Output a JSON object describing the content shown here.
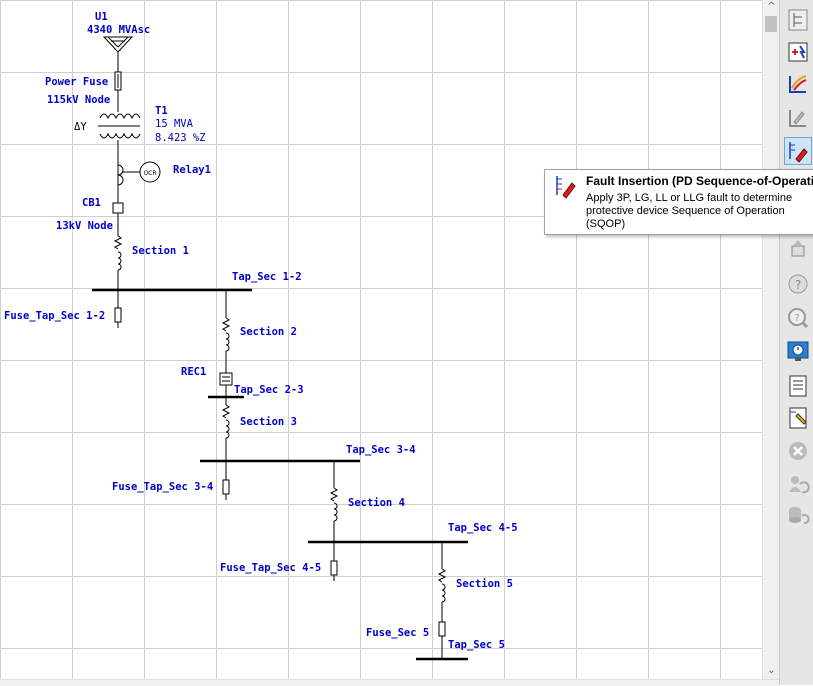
{
  "diagram": {
    "source": {
      "name": "U1",
      "rating": "4340 MVAsc"
    },
    "power_fuse": {
      "name": "Power Fuse"
    },
    "node_115": {
      "name": "115kV Node"
    },
    "transformer": {
      "name": "T1",
      "rating": "15 MVA",
      "impedance": "8.423 %Z",
      "winding": "ΔY"
    },
    "relay": {
      "name": "Relay1",
      "type": "OCR"
    },
    "breaker": {
      "name": "CB1"
    },
    "node_13": {
      "name": "13kV Node"
    },
    "sections": [
      "Section 1",
      "Section 2",
      "Section 3",
      "Section 4",
      "Section 5"
    ],
    "taps": [
      "Tap_Sec 1-2",
      "Tap_Sec 2-3",
      "Tap_Sec 3-4",
      "Tap_Sec 4-5",
      "Tap_Sec 5"
    ],
    "recloser": {
      "name": "REC1"
    },
    "fuses": [
      "Fuse_Tap_Sec 1-2",
      "Fuse_Tap_Sec 3-4",
      "Fuse_Tap_Sec 4-5",
      "Fuse_Sec 5"
    ]
  },
  "tooltip": {
    "title": "Fault Insertion (PD Sequence-of-Operation)",
    "body": "Apply 3P, LG, LL or LLG fault to determine protective device Sequence of Operation (SQOP)"
  },
  "toolbar": {
    "buttons": [
      "one-line-icon",
      "fault-insertion-icon",
      "coordination-icon",
      "tcc-icon",
      "fault-insertion-selected-icon",
      "device-icon",
      "query-icon",
      "help-icon",
      "monitor-icon",
      "report-icon",
      "document-edit-icon",
      "cancel-icon",
      "user-refresh-icon",
      "database-refresh-icon"
    ]
  },
  "colors": {
    "label": "#0000c8",
    "line": "#000000",
    "grid": "#cfcfcf",
    "toolbar": "#e6e6e6",
    "tooltip_border": "#a0a0a0",
    "accent_red": "#d42020"
  }
}
